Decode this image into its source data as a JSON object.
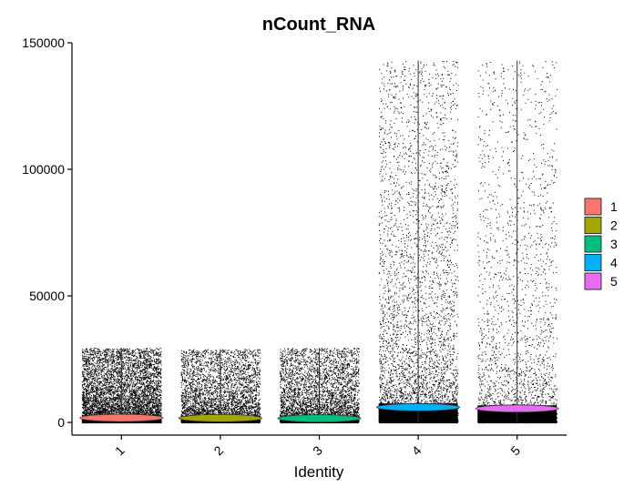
{
  "chart_data": {
    "type": "violin",
    "title": "nCount_RNA",
    "xlabel": "Identity",
    "ylabel": "",
    "categories": [
      "1",
      "2",
      "3",
      "4",
      "5"
    ],
    "ylim": [
      -5000,
      150000
    ],
    "yticks": [
      0,
      50000,
      100000,
      150000
    ],
    "ytick_labels": [
      "0",
      "50000",
      "100000",
      "150000"
    ],
    "grid": false,
    "legend": {
      "placement": "right",
      "entries": [
        "1",
        "2",
        "3",
        "4",
        "5"
      ]
    },
    "colors": [
      "#F8766D",
      "#A3A500",
      "#00BF7D",
      "#00B0F6",
      "#E76BF3"
    ],
    "series": [
      {
        "category": "1",
        "max": 29500,
        "median": 1800,
        "points_density": "high",
        "spread_center": 1500
      },
      {
        "category": "2",
        "max": 29000,
        "median": 1700,
        "points_density": "medium",
        "spread_center": 1500
      },
      {
        "category": "3",
        "max": 29500,
        "median": 1600,
        "points_density": "medium",
        "spread_center": 1500
      },
      {
        "category": "4",
        "max": 143000,
        "median": 6000,
        "points_density": "very-high",
        "spread_center": 5000
      },
      {
        "category": "5",
        "max": 143000,
        "median": 5500,
        "points_density": "low",
        "spread_center": 4500
      }
    ]
  }
}
